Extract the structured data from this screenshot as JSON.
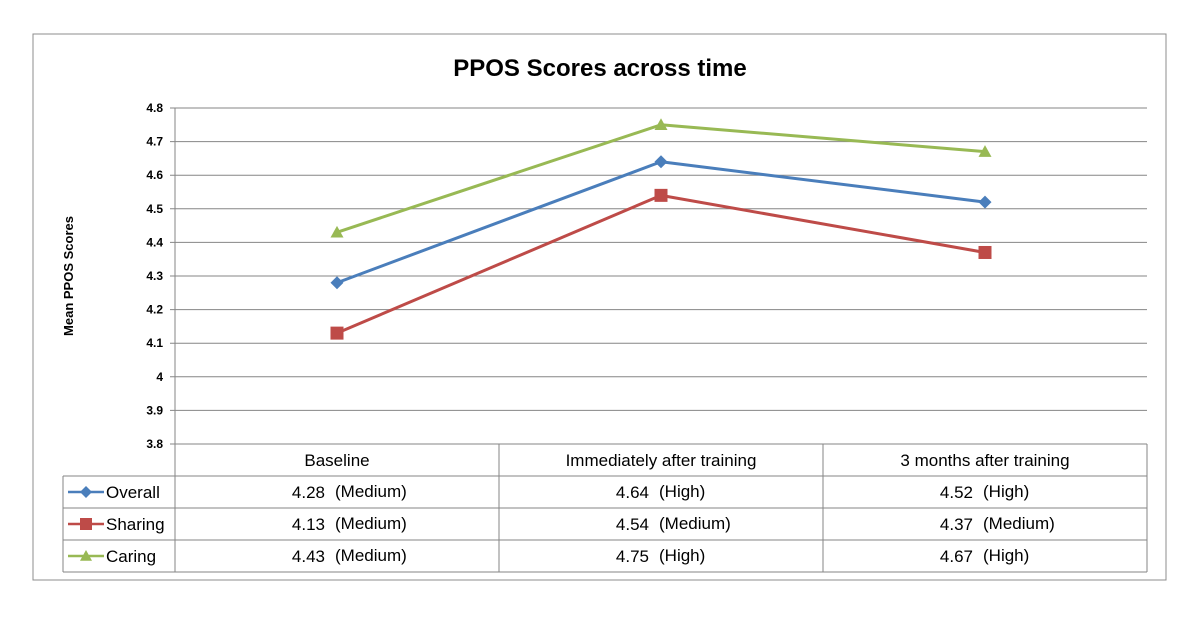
{
  "chart_data": {
    "type": "line",
    "title": "PPOS Scores across time",
    "xlabel": "",
    "ylabel": "Mean PPOS Scores",
    "ylim": [
      3.8,
      4.8
    ],
    "ytick_step": 0.1,
    "ytick_labels": [
      "3.8",
      "3.9",
      "4",
      "4.1",
      "4.2",
      "4.3",
      "4.4",
      "4.5",
      "4.6",
      "4.7",
      "4.8"
    ],
    "grid": true,
    "legend": "data-table-left",
    "categories": [
      "Baseline",
      "Immediately after training",
      "3 months after training"
    ],
    "series": [
      {
        "name": "Overall",
        "color": "#4a7ebb",
        "marker": "diamond",
        "values": [
          4.28,
          4.64,
          4.52
        ],
        "table_values": [
          "4.28",
          "4.64",
          "4.52"
        ],
        "table_levels": [
          "(Medium)",
          "(High)",
          "(High)"
        ]
      },
      {
        "name": "Sharing",
        "color": "#be4b48",
        "marker": "square",
        "values": [
          4.13,
          4.54,
          4.37
        ],
        "table_values": [
          "4.13",
          "4.54",
          "4.37"
        ],
        "table_levels": [
          "(Medium)",
          "(Medium)",
          "(Medium)"
        ]
      },
      {
        "name": "Caring",
        "color": "#98b954",
        "marker": "triangle",
        "values": [
          4.43,
          4.75,
          4.67
        ],
        "table_values": [
          "4.43",
          "4.75",
          "4.67"
        ],
        "table_levels": [
          "(Medium)",
          "(High)",
          "(High)"
        ]
      }
    ]
  }
}
